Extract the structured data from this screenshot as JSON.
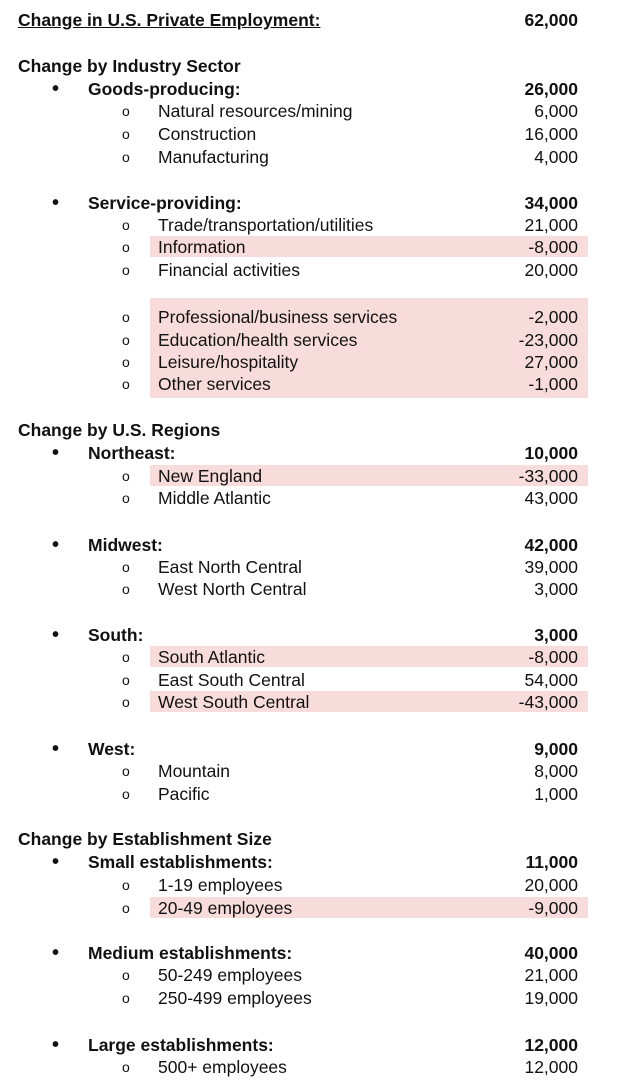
{
  "title": {
    "label": "Change in U.S. Private Employment:",
    "value": "62,000"
  },
  "industry": {
    "heading": "Change by Industry Sector",
    "goods": {
      "label": "Goods-producing:",
      "value": "26,000",
      "items": [
        {
          "label": "Natural resources/mining",
          "value": "6,000"
        },
        {
          "label": "Construction",
          "value": "16,000"
        },
        {
          "label": "Manufacturing",
          "value": "4,000"
        }
      ]
    },
    "service": {
      "label": "Service-providing:",
      "value": "34,000",
      "items": [
        {
          "label": "Trade/transportation/utilities",
          "value": "21,000"
        },
        {
          "label": "Information",
          "value": "-8,000"
        },
        {
          "label": "Financial activities",
          "value": "20,000"
        },
        {
          "label": "Professional/business services",
          "value": "-2,000"
        },
        {
          "label": "Education/health services",
          "value": "-23,000"
        },
        {
          "label": "Leisure/hospitality",
          "value": "27,000"
        },
        {
          "label": "Other services",
          "value": "-1,000"
        }
      ]
    }
  },
  "regions": {
    "heading": "Change by U.S. Regions",
    "northeast": {
      "label": "Northeast:",
      "value": "10,000",
      "items": [
        {
          "label": "New England",
          "value": "-33,000"
        },
        {
          "label": "Middle Atlantic",
          "value": "43,000"
        }
      ]
    },
    "midwest": {
      "label": "Midwest:",
      "value": "42,000",
      "items": [
        {
          "label": "East North Central",
          "value": "39,000"
        },
        {
          "label": "West North Central",
          "value": "3,000"
        }
      ]
    },
    "south": {
      "label": "South:",
      "value": "3,000",
      "items": [
        {
          "label": "South Atlantic",
          "value": "-8,000"
        },
        {
          "label": "East South Central",
          "value": "54,000"
        },
        {
          "label": "West South Central",
          "value": "-43,000"
        }
      ]
    },
    "west": {
      "label": "West:",
      "value": "9,000",
      "items": [
        {
          "label": "Mountain",
          "value": "8,000"
        },
        {
          "label": "Pacific",
          "value": "1,000"
        }
      ]
    }
  },
  "size": {
    "heading": "Change by Establishment Size",
    "small": {
      "label": "Small establishments:",
      "value": "11,000",
      "items": [
        {
          "label": "1-19 employees",
          "value": "20,000"
        },
        {
          "label": "20-49 employees",
          "value": "-9,000"
        }
      ]
    },
    "medium": {
      "label": "Medium establishments:",
      "value": "40,000",
      "items": [
        {
          "label": "50-249 employees",
          "value": "21,000"
        },
        {
          "label": "250-499 employees",
          "value": "19,000"
        }
      ]
    },
    "large": {
      "label": "Large establishments:",
      "value": "12,000",
      "items": [
        {
          "label": "500+ employees",
          "value": "12,000"
        }
      ]
    }
  },
  "colors": {
    "negative_highlight": "#f8dcdc",
    "text": "#111111"
  }
}
